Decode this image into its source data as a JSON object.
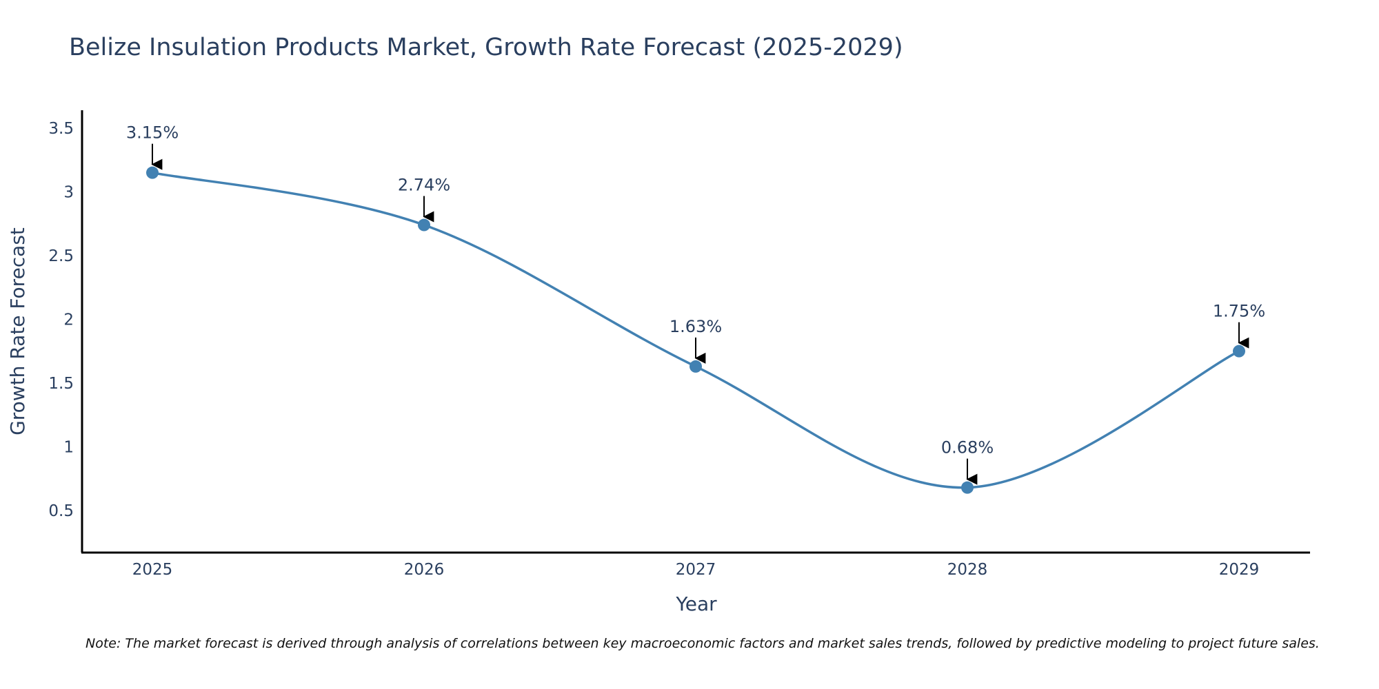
{
  "chart_data": {
    "type": "line",
    "title": "Belize Insulation Products Market, Growth Rate Forecast (2025-2029)",
    "xlabel": "Year",
    "ylabel": "Growth Rate Forecast",
    "categories": [
      "2025",
      "2026",
      "2027",
      "2028",
      "2029"
    ],
    "values": [
      3.15,
      2.74,
      1.63,
      0.68,
      1.75
    ],
    "data_labels": [
      "3.15%",
      "2.74%",
      "1.63%",
      "0.68%",
      "1.75%"
    ],
    "y_ticks": [
      0.5,
      1,
      1.5,
      2,
      2.5,
      3,
      3.5
    ],
    "y_tick_labels": [
      "0.5",
      "1",
      "1.5",
      "2",
      "2.5",
      "3",
      "3.5"
    ],
    "ylim": [
      0.17,
      3.64
    ],
    "grid": false,
    "line_shape": "spline",
    "colors": {
      "line": "#4281b2",
      "marker": "#4281b2",
      "axis": "#000000",
      "text": "#2a3f5f",
      "arrow": "#000000"
    },
    "note": "Note: The market forecast is derived through analysis of correlations between key macroeconomic factors and market sales trends, followed by predictive modeling to project future sales."
  }
}
